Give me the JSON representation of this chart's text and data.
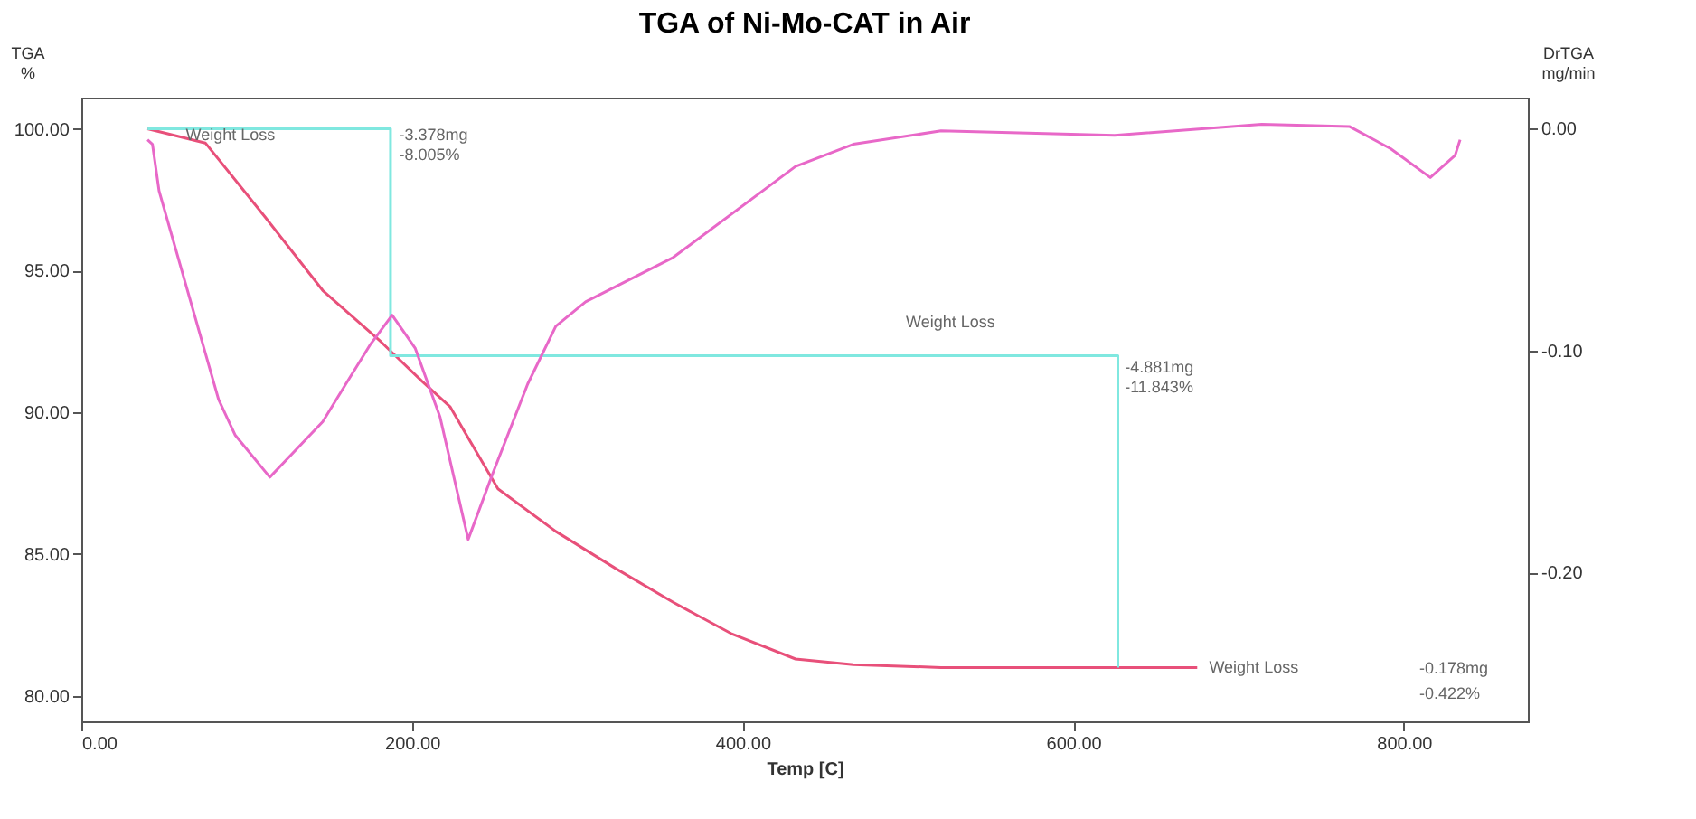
{
  "chart_data": {
    "type": "line",
    "title": "TGA of Ni-Mo-CAT in Air",
    "xlabel": "Temp [C]",
    "ylabel": "TGA\n%",
    "y2label": "DrTGA\nmg/min",
    "xlim": [
      0,
      875
    ],
    "ylim": [
      79.1,
      101.1
    ],
    "y2lim": [
      -0.267,
      0.014
    ],
    "xticks": [
      {
        "value": 0,
        "label": "0.00"
      },
      {
        "value": 200,
        "label": "200.00"
      },
      {
        "value": 400,
        "label": "400.00"
      },
      {
        "value": 600,
        "label": "600.00"
      },
      {
        "value": 800,
        "label": "800.00"
      }
    ],
    "yticks": [
      {
        "value": 80,
        "label": "80.00"
      },
      {
        "value": 85,
        "label": "85.00"
      },
      {
        "value": 90,
        "label": "90.00"
      },
      {
        "value": 95,
        "label": "95.00"
      },
      {
        "value": 100,
        "label": "100.00"
      }
    ],
    "y2ticks": [
      {
        "value": -0.2,
        "label": "-0.20"
      },
      {
        "value": -0.1,
        "label": "-0.10"
      },
      {
        "value": 0,
        "label": "0.00"
      }
    ],
    "grid": false,
    "marker": "none",
    "line_style": "solid",
    "series": [
      {
        "color": "#e8507a",
        "x": [
          40,
          75,
          111,
          146,
          181,
          206,
          223,
          252,
          287,
          323,
          358,
          393,
          432,
          467,
          520,
          625,
          675
        ],
        "values": [
          100.0,
          99.5,
          96.9,
          94.3,
          92.5,
          91.1,
          90.2,
          87.3,
          85.8,
          84.5,
          83.3,
          82.2,
          81.3,
          81.1,
          81.0,
          81.0,
          81.0
        ]
      },
      {
        "color": "#e868c8",
        "axis": "y2",
        "x": [
          40,
          43,
          47,
          83,
          93,
          114,
          146,
          160,
          175,
          188,
          202,
          217,
          234,
          249,
          270,
          287,
          305,
          358,
          432,
          467,
          520,
          625,
          714,
          767,
          792,
          816,
          831,
          834
        ],
        "values": [
          -0.005,
          -0.007,
          -0.028,
          -0.122,
          -0.138,
          -0.157,
          -0.132,
          -0.115,
          -0.097,
          -0.084,
          -0.099,
          -0.13,
          -0.185,
          -0.155,
          -0.115,
          -0.089,
          -0.078,
          -0.058,
          -0.017,
          -0.007,
          -0.001,
          -0.003,
          0.002,
          0.001,
          -0.009,
          -0.022,
          -0.012,
          -0.005
        ]
      },
      {
        "color": "#80e8e0",
        "x": [
          40,
          187,
          187,
          627,
          627
        ],
        "values": [
          100.0,
          100.0,
          92.0,
          92.0,
          81.0
        ]
      }
    ],
    "annotations": [
      {
        "text": "Weight Loss",
        "x": 61,
        "y": 99.8
      },
      {
        "text": "-3.378mg",
        "x": 190,
        "y": 99.8
      },
      {
        "text": "-8.005%",
        "x": 190,
        "y": 99.1
      },
      "Weight Loss",
      {
        "text": "-4.881mg",
        "x": 629,
        "y": 91.6
      },
      {
        "text": "-11.843%",
        "x": 629,
        "y": 90.9
      },
      {
        "text": "Weight Loss",
        "x": 680,
        "y": 81.0
      },
      "-0.178mg",
      "-0.422%"
    ]
  }
}
